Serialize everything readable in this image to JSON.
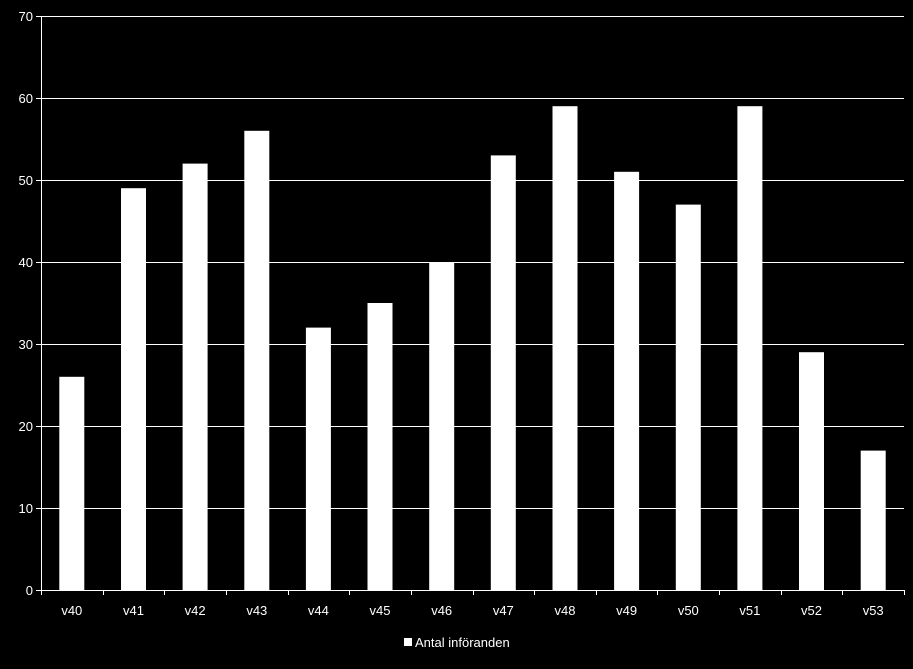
{
  "chart_data": {
    "type": "bar",
    "categories": [
      "v40",
      "v41",
      "v42",
      "v43",
      "v44",
      "v45",
      "v46",
      "v47",
      "v48",
      "v49",
      "v50",
      "v51",
      "v52",
      "v53"
    ],
    "series": [
      {
        "name": "Antal införanden",
        "values": [
          26,
          49,
          52,
          56,
          32,
          35,
          40,
          53,
          59,
          51,
          47,
          59,
          29,
          17
        ]
      }
    ],
    "title": "",
    "xlabel": "",
    "ylabel": "",
    "ylim": [
      0,
      70
    ],
    "yticks": [
      "0",
      "10",
      "20",
      "30",
      "40",
      "50",
      "60",
      "70"
    ],
    "grid": "horizontal",
    "legend_position": "bottom-center",
    "colors": {
      "background": "#000000",
      "bar": "#ffffff",
      "grid": "#ffffff",
      "axis": "#ffffff",
      "text": "#ffffff"
    }
  }
}
